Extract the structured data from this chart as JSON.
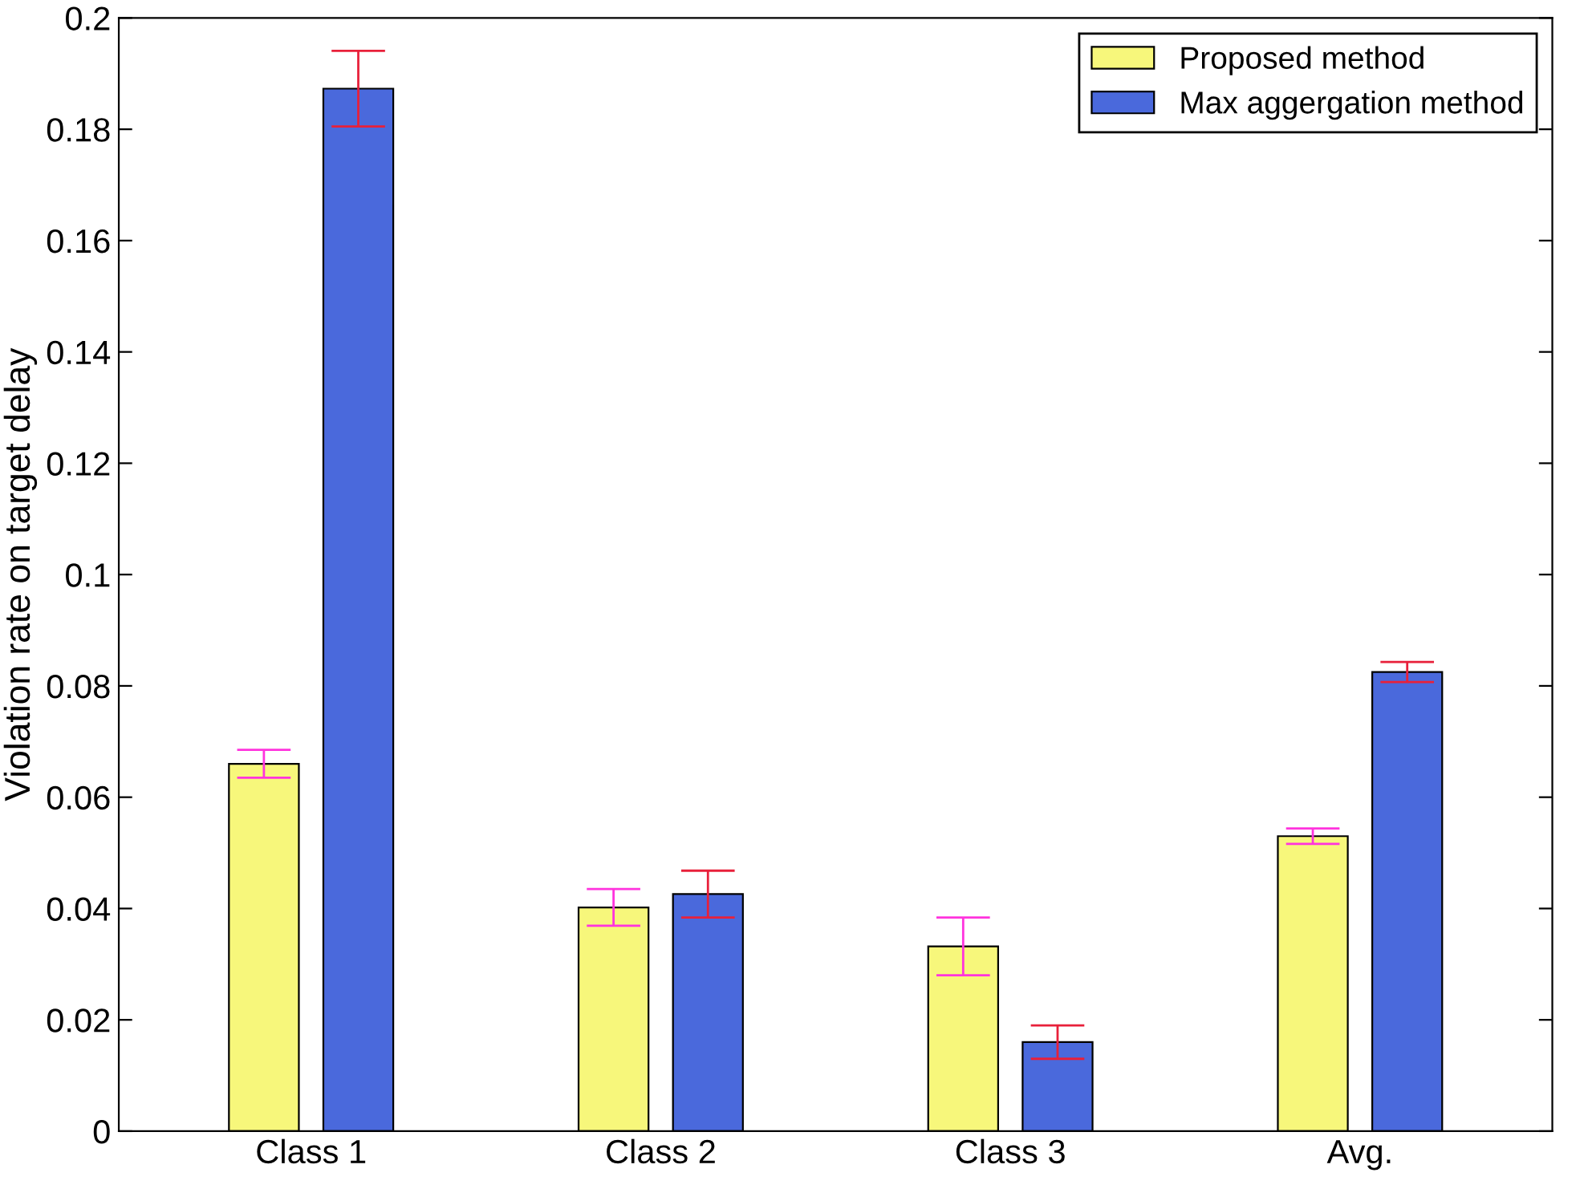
{
  "chart_data": {
    "type": "bar",
    "ylabel": "Violation rate on target delay",
    "categories": [
      "Class 1",
      "Class 2",
      "Class 3",
      "Avg."
    ],
    "series": [
      {
        "name": "Proposed method",
        "color": "#f7f77b",
        "values": [
          0.066,
          0.0402,
          0.0332,
          0.053
        ],
        "errors": [
          0.0025,
          0.0033,
          0.0052,
          0.0014
        ]
      },
      {
        "name": "Max aggergation method",
        "color": "#4a69dc",
        "values": [
          0.1873,
          0.0426,
          0.016,
          0.0825
        ],
        "errors": [
          0.0068,
          0.0042,
          0.003,
          0.0018
        ]
      }
    ],
    "ylim": [
      0,
      0.2
    ],
    "yticks": [
      0,
      0.02,
      0.04,
      0.06,
      0.08,
      0.1,
      0.12,
      0.14,
      0.16,
      0.18,
      0.2
    ],
    "grid": false,
    "legend": "top right"
  }
}
